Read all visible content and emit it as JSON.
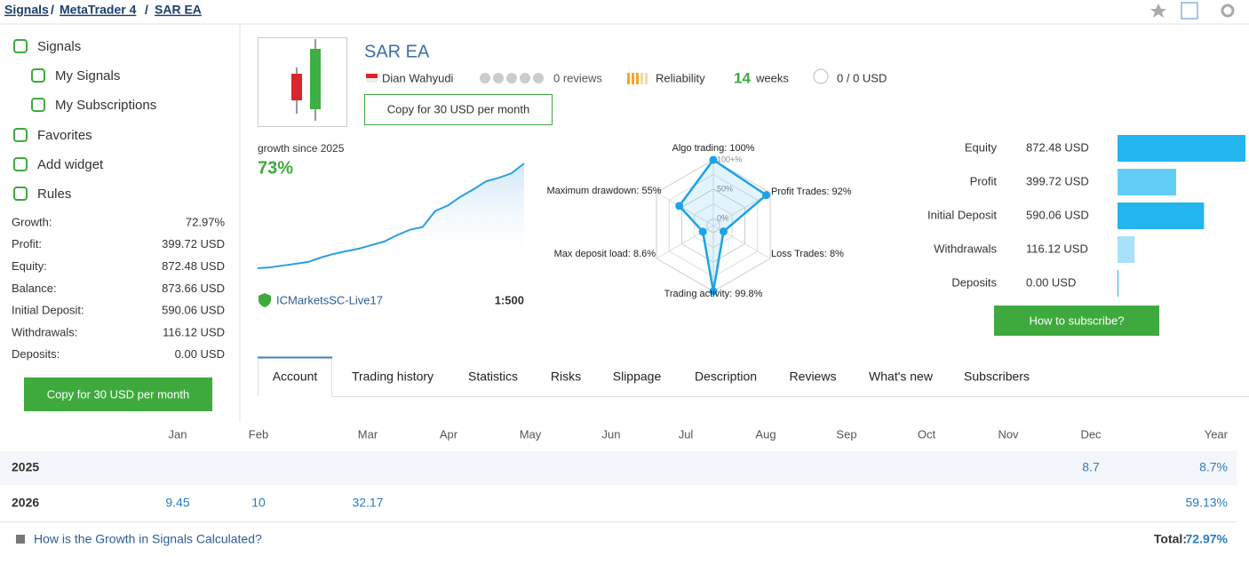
{
  "breadcrumb": {
    "items": [
      "Signals",
      "MetaTrader 4",
      "SAR EA"
    ],
    "separator": "/"
  },
  "sidebar": {
    "nav": [
      "Signals",
      "My Signals",
      "My Subscriptions",
      "Favorites",
      "Add widget",
      "Rules"
    ],
    "stats": [
      {
        "label": "Growth:",
        "value": "72.97%"
      },
      {
        "label": "Profit:",
        "value": "399.72 USD"
      },
      {
        "label": "Equity:",
        "value": "872.48 USD"
      },
      {
        "label": "Balance:",
        "value": "873.66 USD"
      },
      {
        "label": "Initial Deposit:",
        "value": "590.06 USD"
      },
      {
        "label": "Withdrawals:",
        "value": "116.12 USD"
      },
      {
        "label": "Deposits:",
        "value": "0.00 USD"
      }
    ],
    "button": "Copy for 30 USD per month"
  },
  "header": {
    "title": "SAR EA",
    "author": "Dian Wahyudi",
    "reviews": "0 reviews",
    "reliability": "Reliability",
    "weeks": 14,
    "weeks_label": "weeks",
    "subscribers": "0 / 0 USD",
    "button": "Copy for 30 USD per month"
  },
  "growth": {
    "label": "growth since 2025",
    "value": "73%",
    "broker": "ICMarketsSC-Live17",
    "leverage": "1:500",
    "chart": {
      "type": "line",
      "color": "#2b9fe0",
      "values": [
        0,
        0.6,
        1.9,
        3.1,
        4.4,
        7.5,
        10,
        11.9,
        13.7,
        16.2,
        18.7,
        23.1,
        26.8,
        28.7,
        39.9,
        43.7,
        49.9,
        54.9,
        60.5,
        63,
        66.1,
        73
      ]
    }
  },
  "radar": {
    "type": "radar",
    "color": "#1aa3e8",
    "axes": [
      {
        "label": "Algo trading: 100%",
        "value": 100
      },
      {
        "label": "Profit Trades: 92%",
        "value": 92
      },
      {
        "label": "Loss Trades: 8%",
        "value": 8
      },
      {
        "label": "Trading activity: 99.8%",
        "value": 99.8
      },
      {
        "label": "Max deposit load: 8.6%",
        "value": 8.6
      },
      {
        "label": "Maximum drawdown: 55%",
        "value": 55
      }
    ],
    "ticks": [
      {
        "value": 100,
        "label": "100+%"
      },
      {
        "value": 50,
        "label": "50%"
      },
      {
        "value": 0,
        "label": "0%"
      }
    ]
  },
  "balance_chart": {
    "type": "bar",
    "orientation": "horizontal",
    "categories": [
      "Equity",
      "Profit",
      "Initial Deposit",
      "Withdrawals",
      "Deposits"
    ],
    "values": [
      872.48,
      399.72,
      590.06,
      116.12,
      0
    ],
    "value_labels": [
      "872.48 USD",
      "399.72 USD",
      "590.06 USD",
      "116.12 USD",
      "0.00 USD"
    ],
    "colors": [
      "#22b5ee",
      "#62cdf5",
      "#22b5ee",
      "#a9e1fa",
      "#22b5ee"
    ]
  },
  "subscribe_button": "How to subscribe?",
  "tabs": {
    "items": [
      "Account",
      "Trading history",
      "Statistics",
      "Risks",
      "Slippage",
      "Description",
      "Reviews",
      "What's new",
      "Subscribers"
    ],
    "active": 0
  },
  "table": {
    "header": [
      null,
      "Jan",
      "Feb",
      "Mar",
      "Apr",
      "May",
      "Jun",
      "Jul",
      "Aug",
      "Sep",
      "Oct",
      "Nov",
      "Dec",
      "Year"
    ],
    "rows": [
      [
        "2025",
        null,
        null,
        null,
        null,
        null,
        null,
        null,
        null,
        null,
        null,
        null,
        "8.7",
        "8.7%"
      ],
      [
        "2026",
        "9.45",
        "10",
        "32.17",
        null,
        null,
        null,
        null,
        null,
        null,
        null,
        null,
        null,
        "59.13%"
      ]
    ]
  },
  "footer": {
    "link": "How is the Growth in Signals Calculated?",
    "total_label": "Total:",
    "total_value": "72.97%"
  }
}
